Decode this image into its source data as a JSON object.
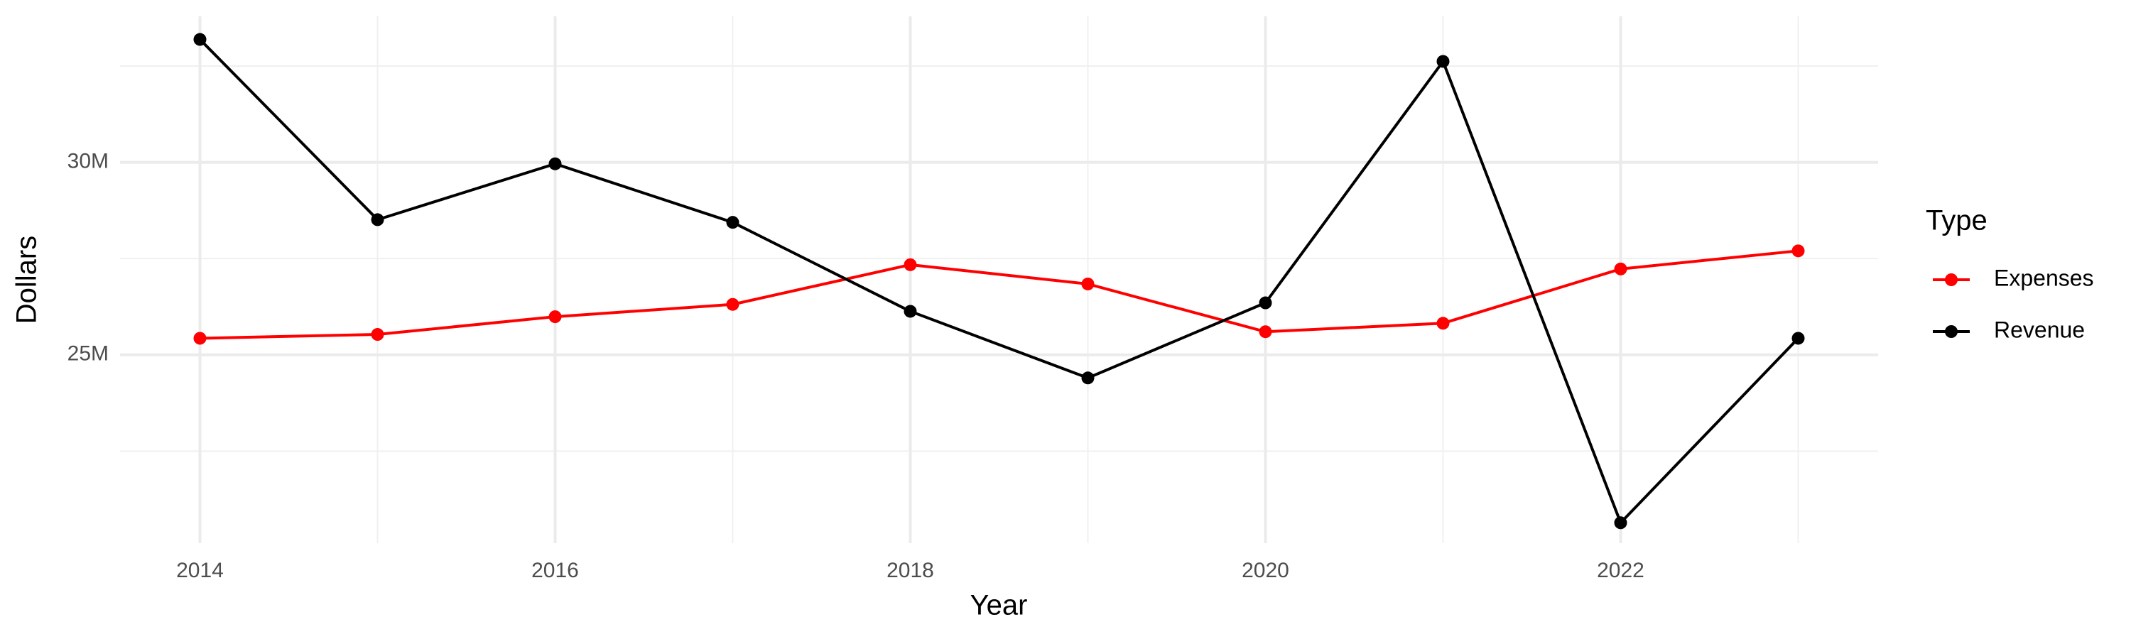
{
  "chart_data": {
    "type": "line",
    "x_label": "Year",
    "y_label": "Dollars",
    "legend_title": "Type",
    "x": [
      2014,
      2015,
      2016,
      2017,
      2018,
      2019,
      2020,
      2021,
      2022,
      2023
    ],
    "series": [
      {
        "name": "Expenses",
        "color": "#ff0000",
        "values": [
          25430000,
          25530000,
          25990000,
          26310000,
          27340000,
          26840000,
          25600000,
          25820000,
          27230000,
          27700000
        ]
      },
      {
        "name": "Revenue",
        "color": "#000000",
        "values": [
          33190000,
          28510000,
          29960000,
          28440000,
          26130000,
          24400000,
          26350000,
          32620000,
          20640000,
          25430000
        ]
      }
    ],
    "xlim": [
      2013.55,
      2023.45
    ],
    "xticks": [
      2014,
      2016,
      2018,
      2020,
      2022
    ],
    "x_minor_ticks": [
      2015,
      2017,
      2019,
      2021,
      2023
    ],
    "ylim": [
      20110000,
      33790000
    ],
    "yticks": [
      {
        "value": 25000000,
        "label": "25M"
      },
      {
        "value": 30000000,
        "label": "30M"
      }
    ],
    "y_minor_ticks": [
      22500000,
      27500000,
      32500000
    ],
    "grid": true,
    "legend": "right"
  }
}
